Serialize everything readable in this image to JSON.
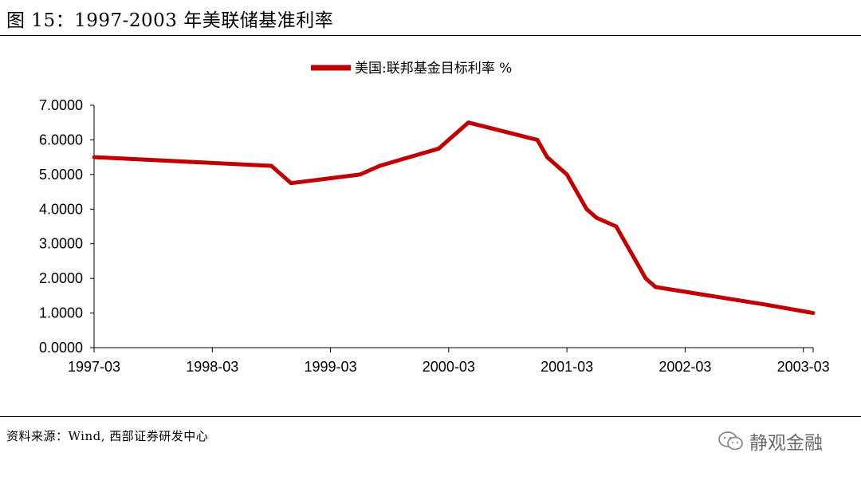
{
  "figure": {
    "title": "图 15：1997-2003 年美联储基准利率",
    "source": "资料来源：Wind, 西部证券研发中心",
    "watermark": "静观金融"
  },
  "colors": {
    "line": "#c00000",
    "axis": "#000000"
  },
  "chart_data": {
    "type": "line",
    "title": "",
    "xlabel": "",
    "ylabel": "",
    "ylim": [
      0,
      7
    ],
    "xlim": [
      "1997-03",
      "2003-04"
    ],
    "y_ticks": [
      "0.0000",
      "1.0000",
      "2.0000",
      "3.0000",
      "4.0000",
      "5.0000",
      "6.0000",
      "7.0000"
    ],
    "x_ticks": [
      "1997-03",
      "1998-03",
      "1999-03",
      "2000-03",
      "2001-03",
      "2002-03",
      "2003-03"
    ],
    "legend": "top-center",
    "grid": false,
    "series": [
      {
        "name": "美国:联邦基金目标利率 %",
        "points": [
          [
            "1997-03",
            5.5
          ],
          [
            "1998-09",
            5.25
          ],
          [
            "1998-10",
            5.0
          ],
          [
            "1998-11",
            4.75
          ],
          [
            "1999-06",
            5.0
          ],
          [
            "1999-08",
            5.25
          ],
          [
            "1999-11",
            5.5
          ],
          [
            "2000-02",
            5.75
          ],
          [
            "2000-03",
            6.0
          ],
          [
            "2000-05",
            6.5
          ],
          [
            "2000-12",
            6.0
          ],
          [
            "2001-01",
            5.5
          ],
          [
            "2001-03",
            5.0
          ],
          [
            "2001-04",
            4.5
          ],
          [
            "2001-05",
            4.0
          ],
          [
            "2001-06",
            3.75
          ],
          [
            "2001-08",
            3.5
          ],
          [
            "2001-09",
            3.0
          ],
          [
            "2001-10",
            2.5
          ],
          [
            "2001-11",
            2.0
          ],
          [
            "2001-12",
            1.75
          ],
          [
            "2002-11",
            1.25
          ],
          [
            "2003-04",
            1.0
          ]
        ]
      }
    ]
  }
}
